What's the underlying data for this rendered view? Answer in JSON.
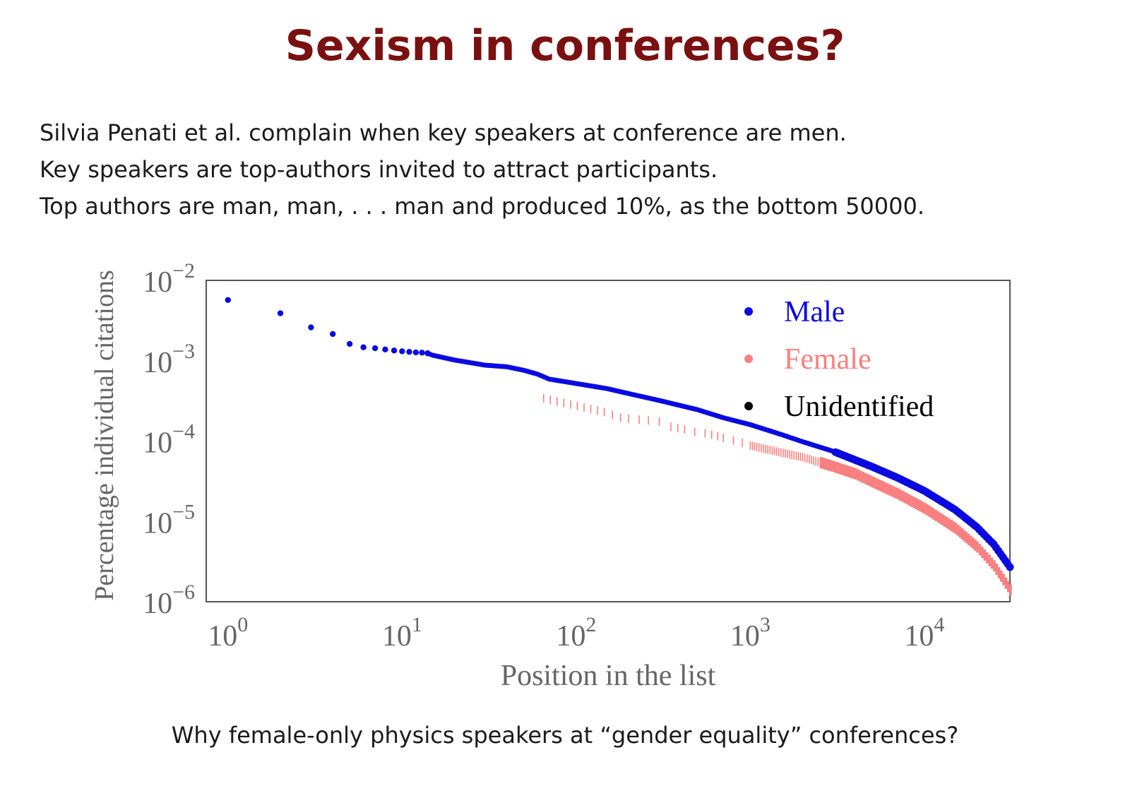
{
  "slide": {
    "title": "Sexism in conferences?",
    "bullets": [
      "Silvia Penati et al. complain when key speakers at conference are men.",
      "Key speakers are top-authors invited to attract participants.",
      "Top authors are man, man, . . . man and produced 10%, as the bottom 50000."
    ],
    "footer": "Why female-only physics speakers at “gender equality” conferences?"
  },
  "chart_data": {
    "type": "scatter",
    "xlabel": "Position in the list",
    "ylabel": "Percentage individual citations",
    "xscale": "log",
    "yscale": "log",
    "xlim": [
      0.75,
      31000
    ],
    "ylim": [
      1e-06,
      0.01
    ],
    "x_ticks": [
      {
        "value": 1,
        "base": "10",
        "exp": "0"
      },
      {
        "value": 10,
        "base": "10",
        "exp": "1"
      },
      {
        "value": 100,
        "base": "10",
        "exp": "2"
      },
      {
        "value": 1000,
        "base": "10",
        "exp": "3"
      },
      {
        "value": 10000,
        "base": "10",
        "exp": "4"
      }
    ],
    "y_ticks": [
      {
        "value": 0.01,
        "base": "10",
        "exp": "−2"
      },
      {
        "value": 0.001,
        "base": "10",
        "exp": "−3"
      },
      {
        "value": 0.0001,
        "base": "10",
        "exp": "−4"
      },
      {
        "value": 1e-05,
        "base": "10",
        "exp": "−5"
      },
      {
        "value": 1e-06,
        "base": "10",
        "exp": "−6"
      }
    ],
    "grid": false,
    "legend_position": "top-right",
    "series": [
      {
        "name": "Male",
        "color": "#0a0ae0",
        "marker": "dot",
        "points": [
          [
            1,
            0.0057
          ],
          [
            2,
            0.0039
          ],
          [
            3,
            0.0026
          ],
          [
            4,
            0.00215
          ],
          [
            5,
            0.00162
          ],
          [
            6,
            0.00147
          ],
          [
            7,
            0.00143
          ],
          [
            8,
            0.00138
          ],
          [
            9,
            0.00134
          ],
          [
            10,
            0.00131
          ],
          [
            11,
            0.00129
          ],
          [
            12,
            0.00127
          ],
          [
            13,
            0.00126
          ],
          [
            14,
            0.00124
          ],
          [
            15,
            0.00117
          ],
          [
            20,
            0.00102
          ],
          [
            30,
            0.00088
          ],
          [
            40,
            0.00084
          ],
          [
            50,
            0.00076
          ],
          [
            60,
            0.00068
          ],
          [
            70,
            0.00059
          ],
          [
            100,
            0.00052
          ],
          [
            150,
            0.00045
          ],
          [
            200,
            0.00039
          ],
          [
            300,
            0.00032
          ],
          [
            500,
            0.000245
          ],
          [
            700,
            0.000195
          ],
          [
            1000,
            0.00016
          ],
          [
            1500,
            0.000121
          ],
          [
            2000,
            9.8e-05
          ],
          [
            3000,
            7.45e-05
          ],
          [
            5000,
            4.8e-05
          ],
          [
            7000,
            3.5e-05
          ],
          [
            10000,
            2.4e-05
          ],
          [
            15000,
            1.4e-05
          ],
          [
            20000,
            8.5e-06
          ],
          [
            25000,
            5.2e-06
          ],
          [
            31000,
            2.7e-06
          ]
        ]
      },
      {
        "name": "Female",
        "color": "#f88080",
        "marker": "tick",
        "points": [
          [
            65,
            0.00034
          ],
          [
            145,
            0.00023
          ],
          [
            180,
            0.000195
          ],
          [
            200,
            0.00019
          ],
          [
            230,
            0.000185
          ],
          [
            260,
            0.00018
          ],
          [
            300,
            0.000175
          ],
          [
            350,
            0.00015
          ],
          [
            420,
            0.00014
          ],
          [
            480,
            0.00013
          ],
          [
            550,
            0.000125
          ],
          [
            600,
            0.00012
          ],
          [
            650,
            0.000115
          ],
          [
            700,
            0.00011
          ],
          [
            800,
            0.000102
          ],
          [
            900,
            9.5e-05
          ],
          [
            1000,
            8.8e-05
          ],
          [
            1500,
            7.2e-05
          ],
          [
            2000,
            6.3e-05
          ],
          [
            3000,
            4.8e-05
          ],
          [
            4000,
            3.9e-05
          ],
          [
            5000,
            3.1e-05
          ],
          [
            7000,
            2.2e-05
          ],
          [
            10000,
            1.45e-05
          ],
          [
            15000,
            8.2e-06
          ],
          [
            20000,
            4.8e-06
          ],
          [
            25000,
            2.8e-06
          ],
          [
            31000,
            1.4e-06
          ]
        ]
      },
      {
        "name": "Unidentified",
        "color": "#000000",
        "marker": "dot",
        "points": []
      }
    ]
  }
}
